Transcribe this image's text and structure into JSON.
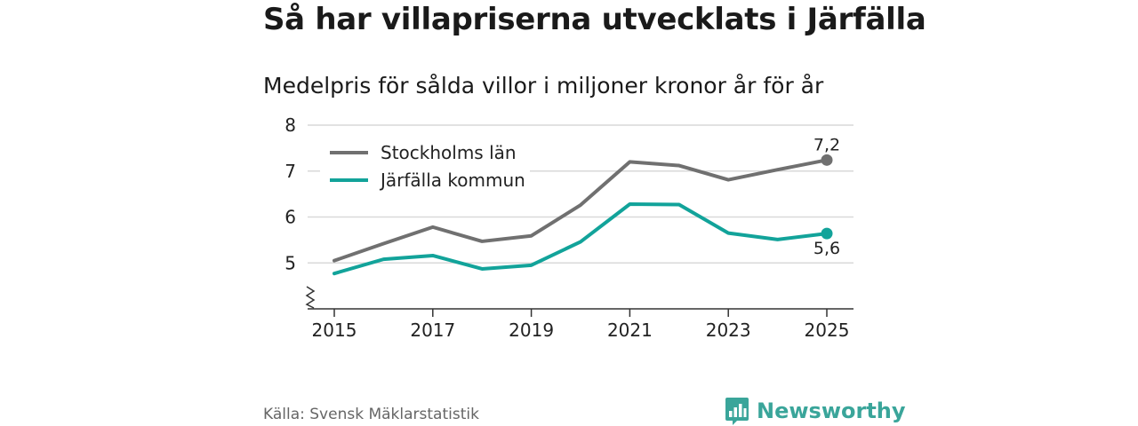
{
  "title": "Så har villapriserna utvecklats i Järfälla",
  "subtitle": "Medelpris för sålda villor i miljoner kronor år för år",
  "source": "Källa: Svensk Mäklarstatistik",
  "brand": {
    "name": "Newsworthy",
    "icon": "bar-chart-logo-icon",
    "color": "#3aa59a"
  },
  "colors": {
    "stockholm": "#707070",
    "jarfalla": "#12a39a",
    "grid": "#d9d9d9",
    "axis": "#333333"
  },
  "chart_data": {
    "type": "line",
    "title": "Så har villapriserna utvecklats i Järfälla",
    "subtitle": "Medelpris för sålda villor i miljoner kronor år för år",
    "xlabel": "",
    "ylabel": "",
    "x": [
      2015,
      2016,
      2017,
      2018,
      2019,
      2020,
      2021,
      2022,
      2023,
      2024,
      2025
    ],
    "xticks": [
      "2015",
      "2017",
      "2019",
      "2021",
      "2023",
      "2025"
    ],
    "yticks": [
      "5",
      "6",
      "7",
      "8"
    ],
    "ylim": [
      4.0,
      8.0
    ],
    "axis_break": true,
    "legend_position": "top-left",
    "series": [
      {
        "name": "Stockholms län",
        "key": "stockholm",
        "values": [
          5.05,
          5.42,
          5.78,
          5.47,
          5.59,
          6.26,
          7.2,
          7.12,
          6.81,
          7.03,
          7.24
        ],
        "end_label": "7,2"
      },
      {
        "name": "Järfälla kommun",
        "key": "jarfalla",
        "values": [
          4.77,
          5.08,
          5.16,
          4.87,
          4.95,
          5.46,
          6.28,
          6.27,
          5.65,
          5.51,
          5.64
        ],
        "end_label": "5,6"
      }
    ]
  }
}
